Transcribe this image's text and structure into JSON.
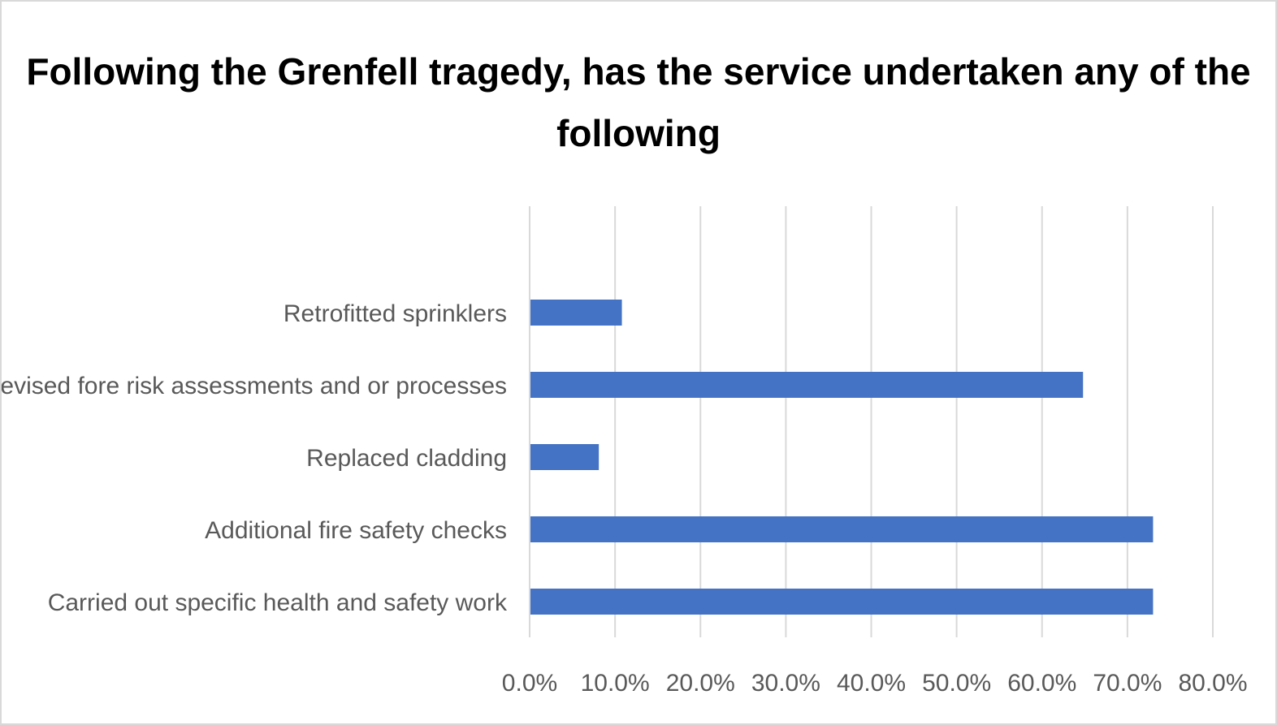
{
  "chart_data": {
    "type": "bar",
    "orientation": "horizontal",
    "title": "Following the Grenfell tragedy, has the service undertaken any of the following",
    "categories": [
      "Retrofitted sprinklers",
      "Revised fore risk assessments and or processes",
      "Replaced cladding",
      "Additional fire safety checks",
      "Carried out specific health and safety work"
    ],
    "values": [
      10.8,
      64.8,
      8.1,
      73.0,
      73.0
    ],
    "value_unit": "%",
    "xlim": [
      0,
      80
    ],
    "xticks": [
      0,
      10,
      20,
      30,
      40,
      50,
      60,
      70,
      80
    ],
    "tick_labels": [
      "0.0%",
      "10.0%",
      "20.0%",
      "30.0%",
      "40.0%",
      "50.0%",
      "60.0%",
      "70.0%",
      "80.0%"
    ],
    "xlabel": "",
    "ylabel": "",
    "grid": "vertical",
    "legend": "none",
    "bar_color": "#4472c4",
    "grid_color": "#d9d9d9"
  }
}
